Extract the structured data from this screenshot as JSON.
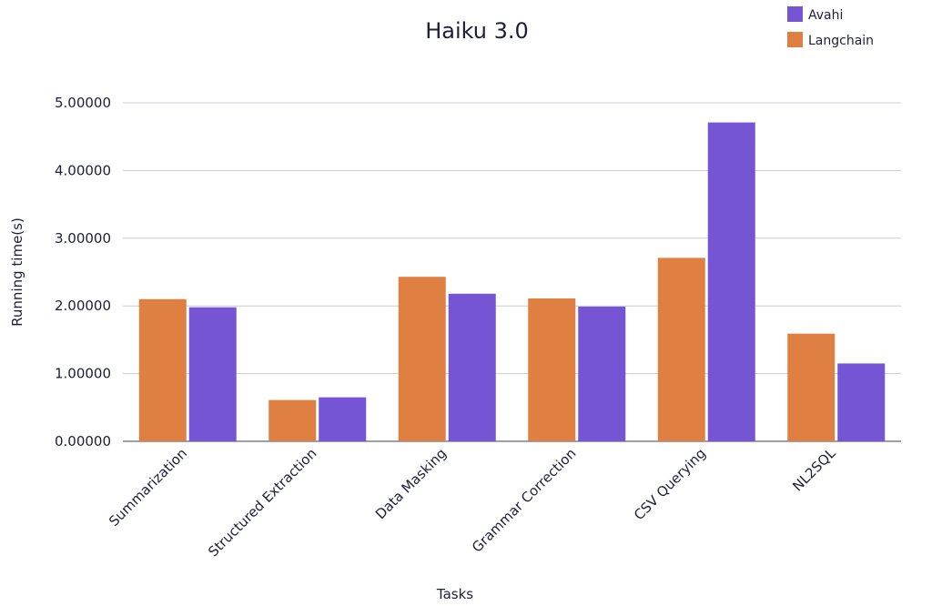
{
  "chart_data": {
    "type": "bar",
    "title": "Haiku 3.0",
    "xlabel": "Tasks",
    "ylabel": "Running time(s)",
    "categories": [
      "Summarization",
      "Structured Extraction",
      "Data Masking",
      "Grammar Correction",
      "CSV Querying",
      "NL2SQL"
    ],
    "series": [
      {
        "name": "Langchain",
        "color": "#e07f42",
        "values": [
          2.1,
          0.61,
          2.43,
          2.11,
          2.71,
          1.59
        ]
      },
      {
        "name": "Avahi",
        "color": "#7555d4",
        "values": [
          1.98,
          0.65,
          2.18,
          1.99,
          4.71,
          1.15
        ]
      }
    ],
    "legend_order": [
      "Avahi",
      "Langchain"
    ],
    "legend_position": "top-right",
    "ylim": [
      0,
      5
    ],
    "yticks": [
      0,
      1,
      2,
      3,
      4,
      5
    ],
    "ytick_labels": [
      "0.00000",
      "1.00000",
      "2.00000",
      "3.00000",
      "4.00000",
      "5.00000"
    ],
    "grid": true
  }
}
